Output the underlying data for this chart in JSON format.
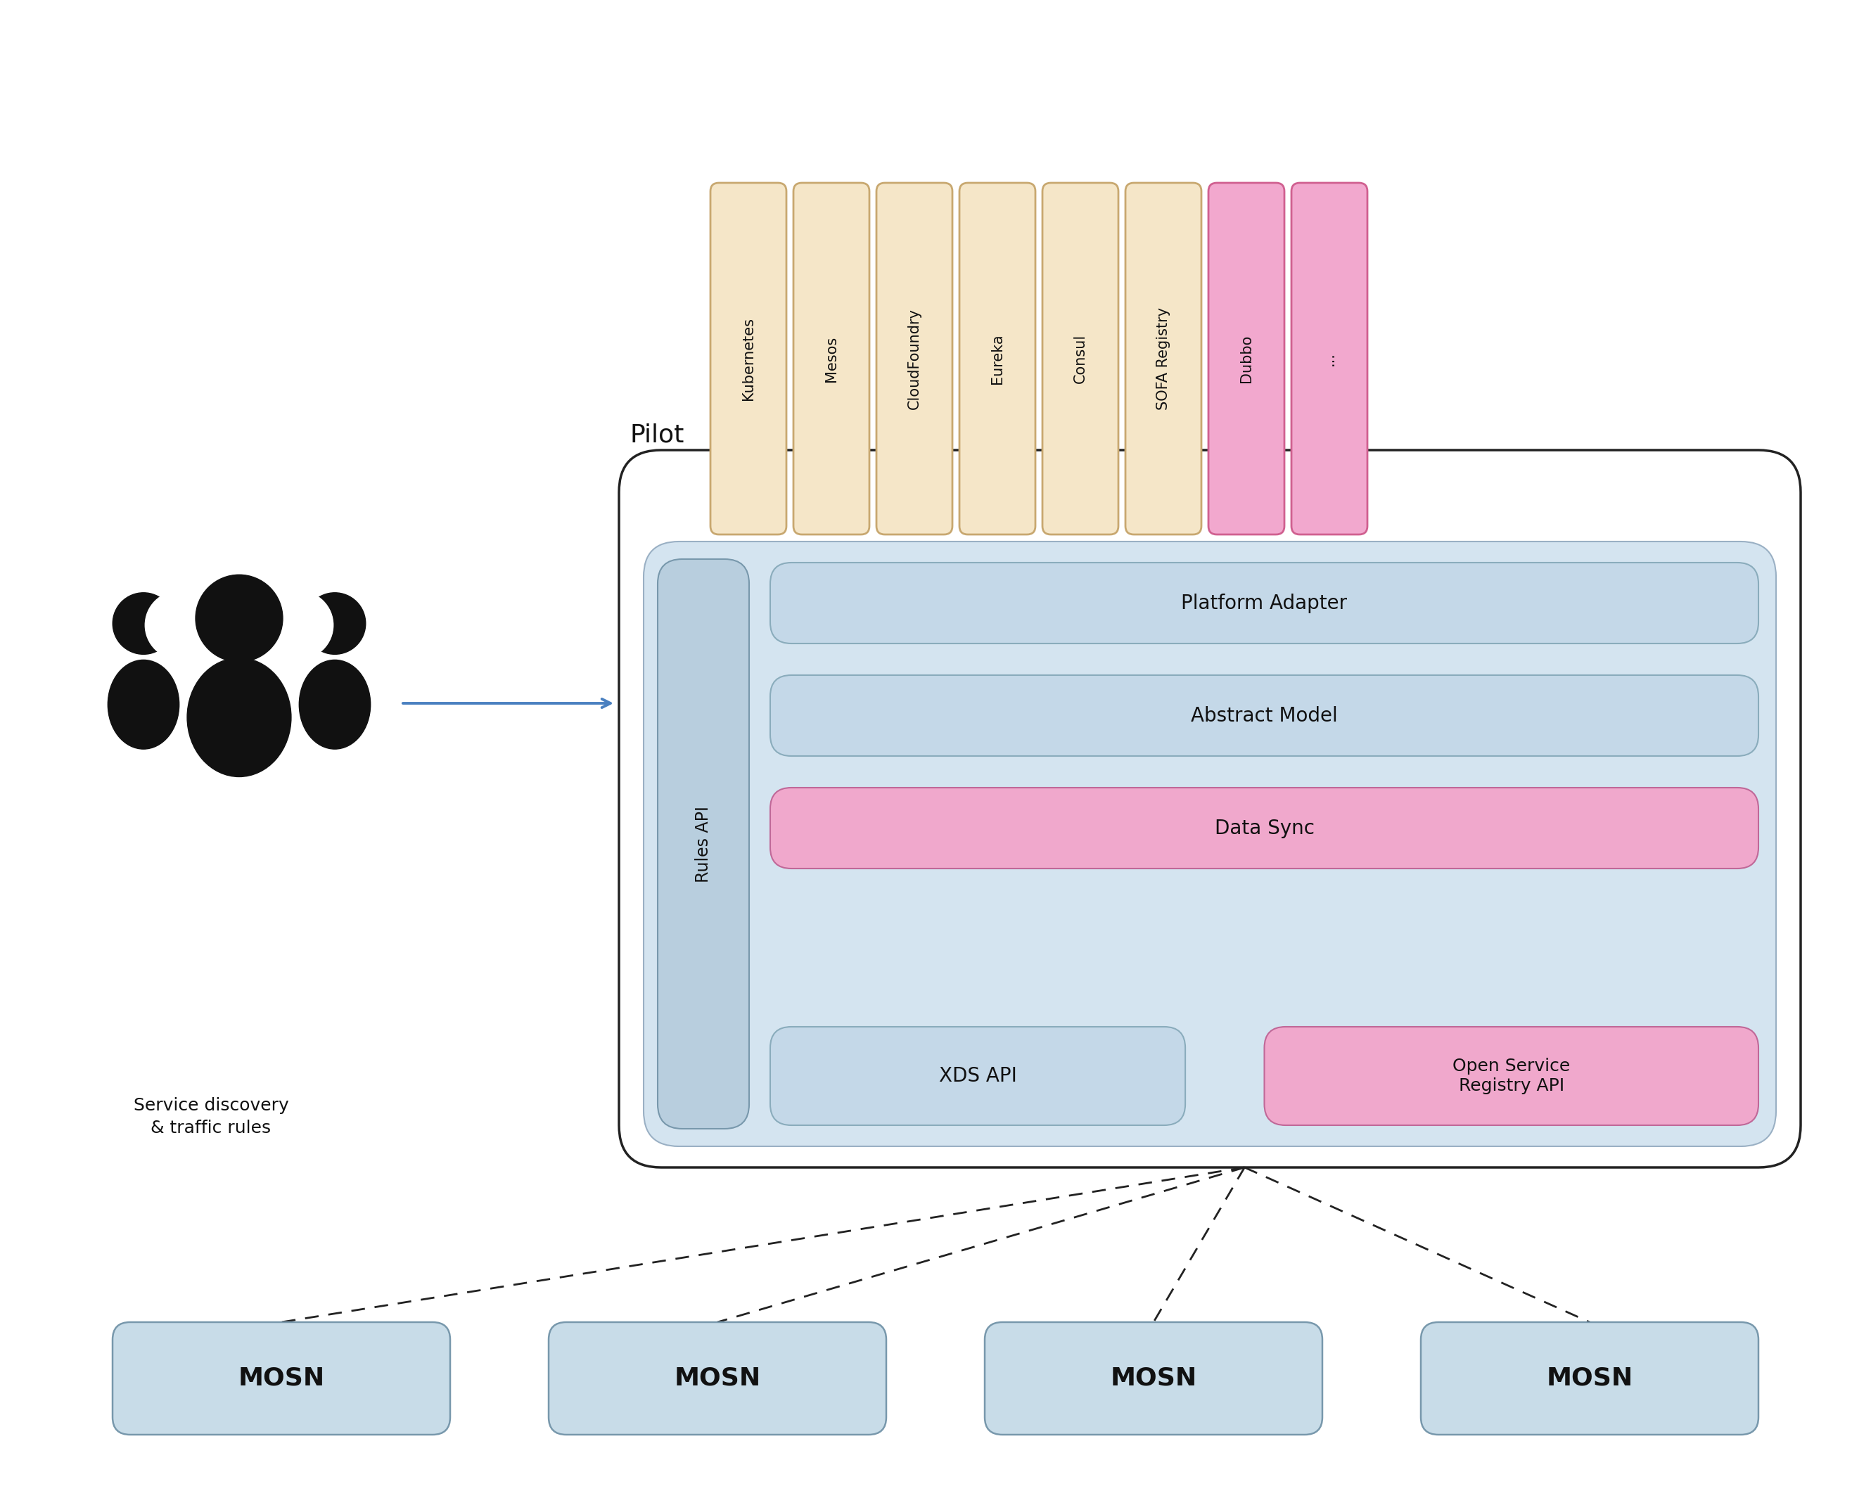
{
  "bg_color": "#ffffff",
  "pilot_label": "Pilot",
  "rules_api_label": "Rules API",
  "platform_adapter_label": "Platform Adapter",
  "abstract_model_label": "Abstract Model",
  "data_sync_label": "Data Sync",
  "xds_api_label": "XDS API",
  "open_service_label": "Open Service\nRegistry API",
  "service_discovery_label": "Service discovery\n& traffic rules",
  "mosn_label": "MOSN",
  "yellow_tabs": [
    "Kubernetes",
    "Mesos",
    "CloudFoundry",
    "Eureka",
    "Consul",
    "SOFA Registry"
  ],
  "pink_tabs": [
    "Dubbo",
    "..."
  ],
  "yellow_color": "#f5e6c8",
  "yellow_border": "#c8a870",
  "pink_color": "#f2a8ce",
  "pink_border": "#d06090",
  "light_blue_bg": "#d4e4f0",
  "light_blue_border": "#9ab0c4",
  "pilot_box_border": "#222222",
  "rules_api_bg": "#b8cede",
  "rules_api_border": "#7898ac",
  "mosn_bg": "#c8dce8",
  "mosn_border": "#7898ac",
  "arrow_color": "#4a80c0",
  "dashed_color": "#222222",
  "inner_box_bg": "#c4d8e8",
  "inner_box_border": "#8aacbc",
  "data_sync_bg": "#f0a8cc",
  "data_sync_border": "#c06898"
}
